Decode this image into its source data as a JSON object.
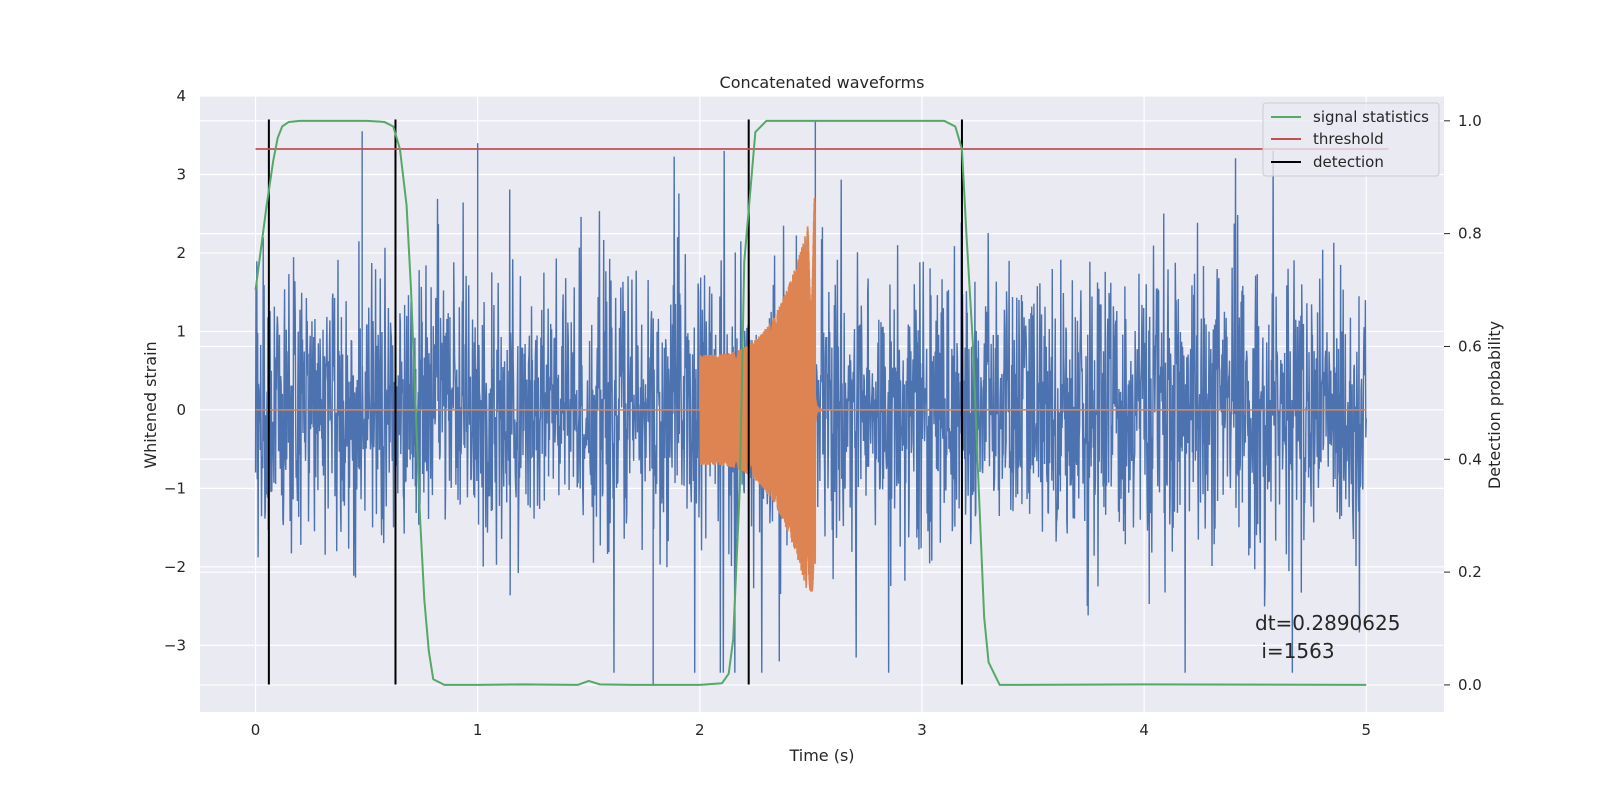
{
  "chart_data": {
    "type": "line",
    "title": "Concatenated waveforms",
    "xlabel": "Time (s)",
    "ylabel": "Whitened strain",
    "y2label": "Detection probability",
    "xlim": [
      -0.25,
      5.35
    ],
    "ylim": [
      -3.85,
      4.0
    ],
    "y2lim": [
      -0.048,
      1.044
    ],
    "xticks": [
      "0",
      "1",
      "2",
      "3",
      "4",
      "5"
    ],
    "yticks": [
      "−3",
      "−2",
      "−1",
      "0",
      "1",
      "2",
      "3",
      "4"
    ],
    "y2ticks": [
      "0.0",
      "0.2",
      "0.4",
      "0.6",
      "0.8",
      "1.0"
    ],
    "grid": true,
    "legend_position": "top-right",
    "legend": [
      {
        "label": "signal statistics",
        "color": "#55a868"
      },
      {
        "label": "threshold",
        "color": "#c44e52"
      },
      {
        "label": "detection",
        "color": "#000000"
      }
    ],
    "colors": {
      "strain": "#4c72b0",
      "template": "#dd8452",
      "signal_statistics": "#55a868",
      "threshold": "#c44e52",
      "detection": "#000000",
      "axes_bg": "#eaeaf2",
      "grid": "#ffffff"
    },
    "series": [
      {
        "name": "strain",
        "axis": "left",
        "description_x": [
          0,
          5
        ],
        "noise_std": 0.85,
        "peaks": [
          [
            0.48,
            3.55
          ],
          [
            1.0,
            3.4
          ],
          [
            2.52,
            3.68
          ],
          [
            1.79,
            -3.5
          ]
        ]
      },
      {
        "name": "template",
        "axis": "left",
        "chirp_start": 2.0,
        "chirp_end": 2.52,
        "start_amplitude": 0.7,
        "peak_amplitude": 2.75,
        "min_amplitude": -2.35
      },
      {
        "name": "signal statistics",
        "axis": "right",
        "x": [
          0,
          0.02,
          0.05,
          0.08,
          0.1,
          0.12,
          0.15,
          0.2,
          0.3,
          0.5,
          0.58,
          0.62,
          0.65,
          0.68,
          0.7,
          0.72,
          0.74,
          0.76,
          0.78,
          0.8,
          0.85,
          1.0,
          1.2,
          1.45,
          1.5,
          1.55,
          1.7,
          2.0,
          2.1,
          2.13,
          2.15,
          2.18,
          2.2,
          2.25,
          2.3,
          2.5,
          3.1,
          3.15,
          3.18,
          3.2,
          3.23,
          3.25,
          3.28,
          3.3,
          3.35,
          4.0,
          5.0
        ],
        "y": [
          0.7,
          0.76,
          0.85,
          0.93,
          0.97,
          0.99,
          0.998,
          1.0,
          1.0,
          1.0,
          0.998,
          0.99,
          0.95,
          0.85,
          0.7,
          0.5,
          0.3,
          0.15,
          0.06,
          0.01,
          0.0,
          0.0,
          0.001,
          0.0,
          0.007,
          0.001,
          0.0,
          0.0,
          0.003,
          0.02,
          0.08,
          0.35,
          0.75,
          0.98,
          1.0,
          1.0,
          1.0,
          0.99,
          0.95,
          0.8,
          0.6,
          0.4,
          0.12,
          0.04,
          0.0,
          0.001,
          0.0
        ]
      },
      {
        "name": "threshold",
        "axis": "right",
        "x": [
          0,
          5.1
        ],
        "y": [
          0.95,
          0.95
        ]
      },
      {
        "name": "detection",
        "axis": "left",
        "x": [
          0.06,
          0.63,
          2.22,
          3.18
        ],
        "y_range": [
          -3.5,
          3.7
        ]
      }
    ],
    "annotation": {
      "line1": "dt=0.2890625",
      "line2": " i=1563"
    }
  }
}
